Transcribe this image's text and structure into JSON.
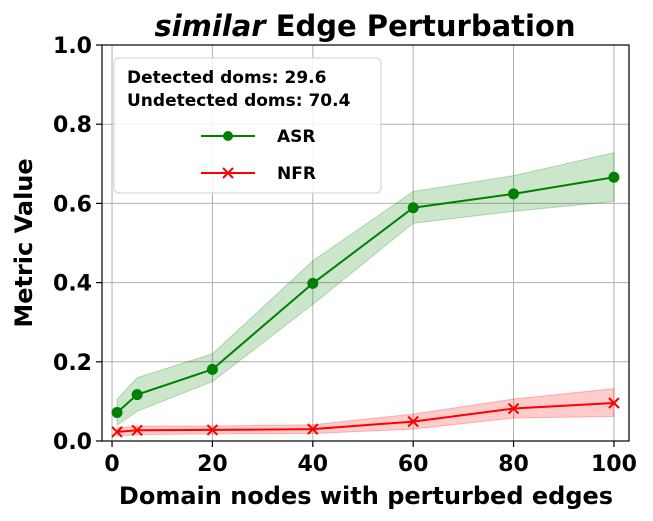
{
  "chart_data": {
    "type": "line",
    "title_italic": "similar",
    "title_rest": "Edge Perturbation",
    "xlabel": "Domain nodes with perturbed edges",
    "ylabel": "Metric Value",
    "xlim": [
      -2,
      103
    ],
    "ylim": [
      0,
      1.0
    ],
    "x_ticks": [
      0,
      20,
      40,
      60,
      80,
      100
    ],
    "y_ticks": [
      0.0,
      0.2,
      0.4,
      0.6,
      0.8,
      1.0
    ],
    "x_tick_labels": [
      "0",
      "20",
      "40",
      "60",
      "80",
      "100"
    ],
    "y_tick_labels": [
      "0.0",
      "0.2",
      "0.4",
      "0.6",
      "0.8",
      "1.0"
    ],
    "grid": true,
    "legend_position": "top-left",
    "annotations": [
      "Detected doms: 29.6",
      "Undetected doms: 70.4"
    ],
    "x": [
      1,
      5,
      20,
      40,
      60,
      80,
      100
    ],
    "series": [
      {
        "name": "ASR",
        "color": "#008000",
        "marker": "circle",
        "values": [
          0.072,
          0.117,
          0.181,
          0.398,
          0.589,
          0.624,
          0.666
        ],
        "lower": [
          0.04,
          0.075,
          0.15,
          0.345,
          0.55,
          0.58,
          0.605
        ],
        "upper": [
          0.105,
          0.16,
          0.22,
          0.455,
          0.63,
          0.67,
          0.728
        ]
      },
      {
        "name": "NFR",
        "color": "#ff0000",
        "marker": "x",
        "values": [
          0.023,
          0.027,
          0.028,
          0.03,
          0.049,
          0.082,
          0.096
        ],
        "lower": [
          0.013,
          0.016,
          0.018,
          0.019,
          0.03,
          0.058,
          0.062
        ],
        "upper": [
          0.033,
          0.038,
          0.038,
          0.041,
          0.068,
          0.106,
          0.132
        ]
      }
    ]
  }
}
